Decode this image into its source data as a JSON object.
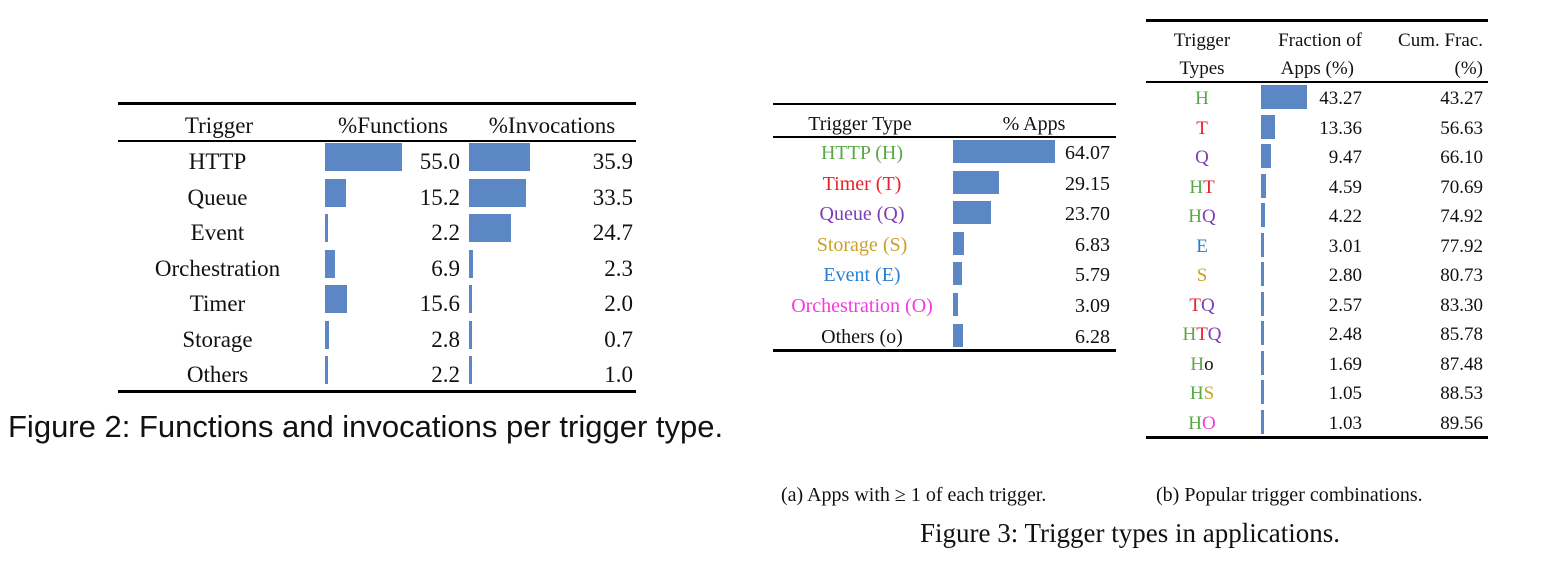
{
  "figure2": {
    "caption": "Figure 2: Functions and invocations per trigger type.",
    "headers": {
      "trigger": "Trigger",
      "functions": "%Functions",
      "invocations": "%Invocations"
    },
    "rows": [
      {
        "trigger": "HTTP",
        "functions": "55.0",
        "invocations": "35.9",
        "functions_value": 55.0,
        "invocations_value": 35.9
      },
      {
        "trigger": "Queue",
        "functions": "15.2",
        "invocations": "33.5",
        "functions_value": 15.2,
        "invocations_value": 33.5
      },
      {
        "trigger": "Event",
        "functions": "2.2",
        "invocations": "24.7",
        "functions_value": 2.2,
        "invocations_value": 24.7
      },
      {
        "trigger": "Orchestration",
        "functions": "6.9",
        "invocations": "2.3",
        "functions_value": 6.9,
        "invocations_value": 2.3
      },
      {
        "trigger": "Timer",
        "functions": "15.6",
        "invocations": "2.0",
        "functions_value": 15.6,
        "invocations_value": 2.0
      },
      {
        "trigger": "Storage",
        "functions": "2.8",
        "invocations": "0.7",
        "functions_value": 2.8,
        "invocations_value": 0.7
      },
      {
        "trigger": "Others",
        "functions": "2.2",
        "invocations": "1.0",
        "functions_value": 2.2,
        "invocations_value": 1.0
      }
    ]
  },
  "figure3": {
    "caption": "Figure 3: Trigger types in applications.",
    "sub_a": {
      "caption": "(a) Apps with ≥ 1 of each trigger.",
      "headers": {
        "type": "Trigger Type",
        "apps": "% Apps"
      },
      "rows": [
        {
          "type": "HTTP (H)",
          "apps": "64.07",
          "value": 64.07,
          "color": "#5aa845"
        },
        {
          "type": "Timer (T)",
          "apps": "29.15",
          "value": 29.15,
          "color": "#e8202a"
        },
        {
          "type": "Queue (Q)",
          "apps": "23.70",
          "value": 23.7,
          "color": "#7b3fb3"
        },
        {
          "type": "Storage (S)",
          "apps": "6.83",
          "value": 6.83,
          "color": "#c9a227"
        },
        {
          "type": "Event (E)",
          "apps": "5.79",
          "value": 5.79,
          "color": "#2a7fd4"
        },
        {
          "type": "Orchestration (O)",
          "apps": "3.09",
          "value": 3.09,
          "color": "#f23ae0"
        },
        {
          "type": "Others (o)",
          "apps": "6.28",
          "value": 6.28,
          "color": "#111111"
        }
      ]
    },
    "sub_b": {
      "caption": "(b) Popular trigger combinations.",
      "headers": {
        "types_line1": "Trigger",
        "types_line2": "Types",
        "frac_line1": "Fraction of",
        "frac_line2": "Apps (%)",
        "cum_line1": "Cum. Frac.",
        "cum_line2": "(%)"
      },
      "colors": {
        "H": "#5aa845",
        "T": "#e8202a",
        "Q": "#7b3fb3",
        "E": "#2a7fd4",
        "S": "#c9a227",
        "O": "#f23ae0",
        "o": "#111111"
      },
      "rows": [
        {
          "types": "H",
          "frac": "43.27",
          "cum": "43.27",
          "value": 43.27
        },
        {
          "types": "T",
          "frac": "13.36",
          "cum": "56.63",
          "value": 13.36
        },
        {
          "types": "Q",
          "frac": "9.47",
          "cum": "66.10",
          "value": 9.47
        },
        {
          "types": "HT",
          "frac": "4.59",
          "cum": "70.69",
          "value": 4.59
        },
        {
          "types": "HQ",
          "frac": "4.22",
          "cum": "74.92",
          "value": 4.22
        },
        {
          "types": "E",
          "frac": "3.01",
          "cum": "77.92",
          "value": 3.01
        },
        {
          "types": "S",
          "frac": "2.80",
          "cum": "80.73",
          "value": 2.8
        },
        {
          "types": "TQ",
          "frac": "2.57",
          "cum": "83.30",
          "value": 2.57
        },
        {
          "types": "HTQ",
          "frac": "2.48",
          "cum": "85.78",
          "value": 2.48
        },
        {
          "types": "Ho",
          "frac": "1.69",
          "cum": "87.48",
          "value": 1.69
        },
        {
          "types": "HS",
          "frac": "1.05",
          "cum": "88.53",
          "value": 1.05
        },
        {
          "types": "HO",
          "frac": "1.03",
          "cum": "89.56",
          "value": 1.03
        }
      ]
    }
  }
}
